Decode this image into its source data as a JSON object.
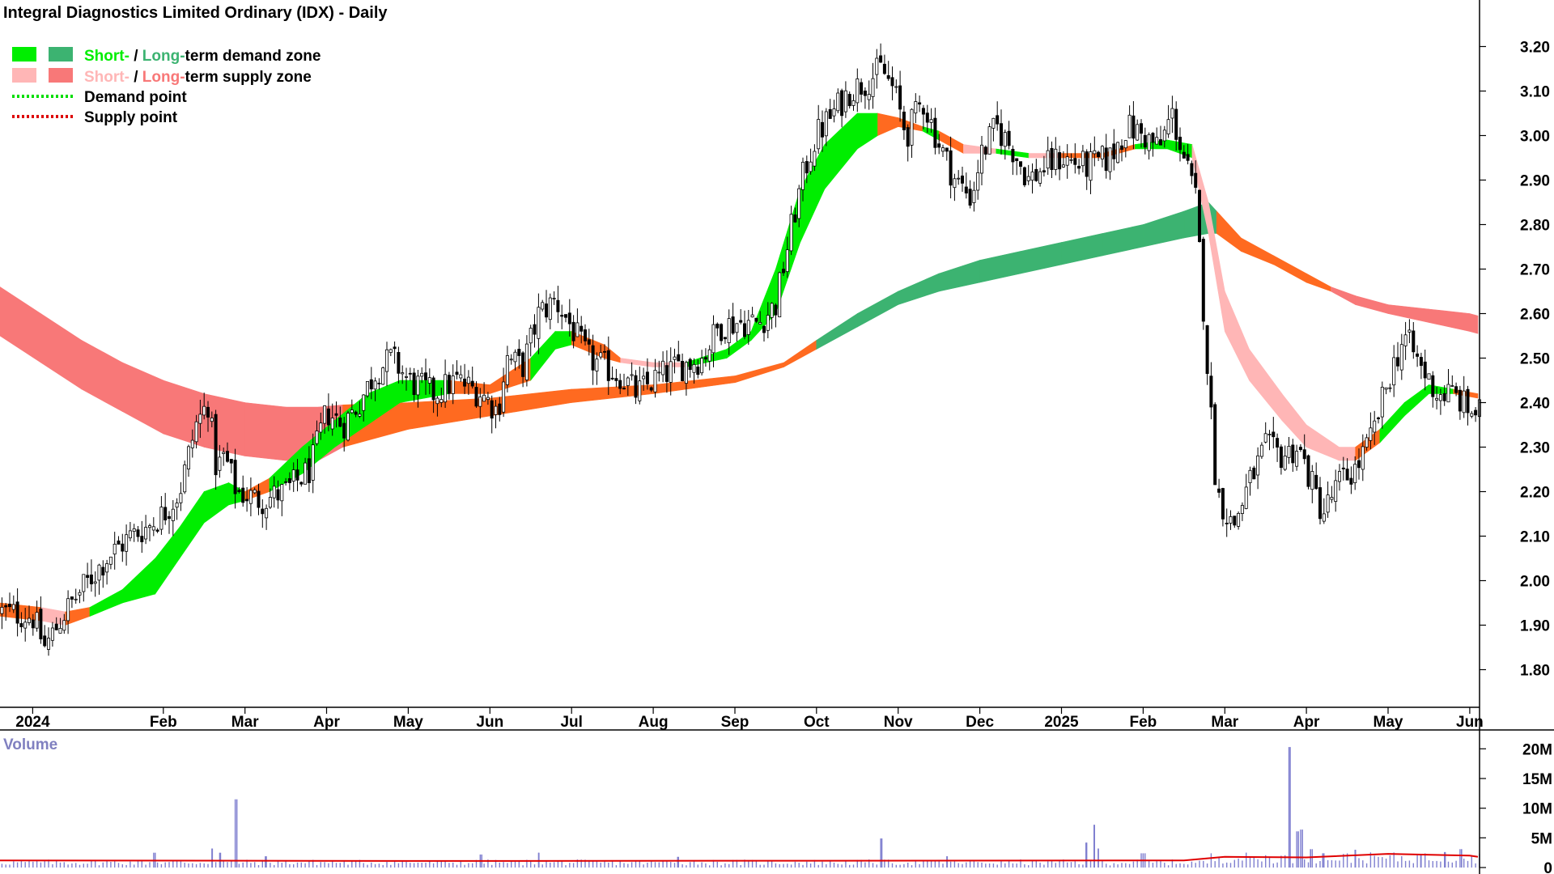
{
  "title": "Integral Diagnostics Limited Ordinary (IDX) - Daily",
  "legend": {
    "demand_zone": {
      "short": "Short-",
      "sep": " / ",
      "long": "Long-",
      "rest": "term demand zone"
    },
    "supply_zone": {
      "short": "Short-",
      "sep": " / ",
      "long": "Long-",
      "rest": "term supply zone"
    },
    "demand_point": "Demand point",
    "supply_point": "Supply point"
  },
  "colors": {
    "short_demand": "#00ee00",
    "long_demand": "#3cb371",
    "short_supply": "#ffb6b6",
    "long_supply": "#f87878",
    "neutral_zone": "#ff6a20",
    "candle": "#000000",
    "volume_bar": "#8080d0",
    "volume_avg": "#e00000",
    "axis_text": "#000000",
    "volume_label": "#8080c0"
  },
  "chart_data": [
    {
      "type": "candlestick",
      "title": "Integral Diagnostics Limited Ordinary (IDX) - Daily",
      "xlabel": "",
      "ylabel": "",
      "ylim": [
        1.75,
        3.25
      ],
      "y_ticks": [
        "1.80",
        "1.90",
        "2.00",
        "2.10",
        "2.20",
        "2.30",
        "2.40",
        "2.50",
        "2.60",
        "2.70",
        "2.80",
        "2.90",
        "3.00",
        "3.10",
        "3.20"
      ],
      "x_ticks": [
        {
          "label": "2024",
          "t": 0.4
        },
        {
          "label": "Feb",
          "t": 2.0
        },
        {
          "label": "Mar",
          "t": 3.0
        },
        {
          "label": "Apr",
          "t": 4.0
        },
        {
          "label": "May",
          "t": 5.0
        },
        {
          "label": "Jun",
          "t": 6.0
        },
        {
          "label": "Jul",
          "t": 7.0
        },
        {
          "label": "Aug",
          "t": 8.0
        },
        {
          "label": "Sep",
          "t": 9.0
        },
        {
          "label": "Oct",
          "t": 10.0
        },
        {
          "label": "Nov",
          "t": 11.0
        },
        {
          "label": "Dec",
          "t": 12.0
        },
        {
          "label": "2025",
          "t": 13.0
        },
        {
          "label": "Feb",
          "t": 14.0
        },
        {
          "label": "Mar",
          "t": 15.0
        },
        {
          "label": "Apr",
          "t": 16.0
        },
        {
          "label": "May",
          "t": 17.0
        },
        {
          "label": "Jun",
          "t": 18.0
        }
      ],
      "t_range": [
        0.0,
        18.1
      ],
      "t_unit": "months since 1 Jan 2024",
      "price_path": [
        [
          0.0,
          1.93
        ],
        [
          0.4,
          1.92
        ],
        [
          0.55,
          1.85
        ],
        [
          0.8,
          1.93
        ],
        [
          1.0,
          1.98
        ],
        [
          1.3,
          2.05
        ],
        [
          1.6,
          2.1
        ],
        [
          1.8,
          2.12
        ],
        [
          2.0,
          2.15
        ],
        [
          2.2,
          2.2
        ],
        [
          2.4,
          2.35
        ],
        [
          2.55,
          2.4
        ],
        [
          2.65,
          2.25
        ],
        [
          2.75,
          2.28
        ],
        [
          2.9,
          2.2
        ],
        [
          3.2,
          2.18
        ],
        [
          3.5,
          2.2
        ],
        [
          3.8,
          2.25
        ],
        [
          4.0,
          2.38
        ],
        [
          4.2,
          2.35
        ],
        [
          4.4,
          2.4
        ],
        [
          4.6,
          2.47
        ],
        [
          4.8,
          2.5
        ],
        [
          5.0,
          2.45
        ],
        [
          5.3,
          2.42
        ],
        [
          5.6,
          2.45
        ],
        [
          5.9,
          2.42
        ],
        [
          6.1,
          2.38
        ],
        [
          6.2,
          2.5
        ],
        [
          6.4,
          2.48
        ],
        [
          6.6,
          2.6
        ],
        [
          6.8,
          2.63
        ],
        [
          7.0,
          2.57
        ],
        [
          7.2,
          2.5
        ],
        [
          7.4,
          2.48
        ],
        [
          7.6,
          2.46
        ],
        [
          7.8,
          2.42
        ],
        [
          8.0,
          2.45
        ],
        [
          8.3,
          2.48
        ],
        [
          8.6,
          2.5
        ],
        [
          8.8,
          2.57
        ],
        [
          9.0,
          2.58
        ],
        [
          9.3,
          2.58
        ],
        [
          9.5,
          2.62
        ],
        [
          9.7,
          2.8
        ],
        [
          9.85,
          2.92
        ],
        [
          10.0,
          3.0
        ],
        [
          10.2,
          3.05
        ],
        [
          10.4,
          3.1
        ],
        [
          10.6,
          3.12
        ],
        [
          10.8,
          3.15
        ],
        [
          10.95,
          3.1
        ],
        [
          11.1,
          3.0
        ],
        [
          11.3,
          3.08
        ],
        [
          11.5,
          2.98
        ],
        [
          11.7,
          2.9
        ],
        [
          11.9,
          2.86
        ],
        [
          12.0,
          2.95
        ],
        [
          12.2,
          3.02
        ],
        [
          12.4,
          2.97
        ],
        [
          12.6,
          2.9
        ],
        [
          12.8,
          2.93
        ],
        [
          13.0,
          2.95
        ],
        [
          13.3,
          2.93
        ],
        [
          13.6,
          2.95
        ],
        [
          13.8,
          3.02
        ],
        [
          14.0,
          3.0
        ],
        [
          14.2,
          2.97
        ],
        [
          14.35,
          3.05
        ],
        [
          14.5,
          2.95
        ],
        [
          14.65,
          2.85
        ],
        [
          14.8,
          2.45
        ],
        [
          14.9,
          2.2
        ],
        [
          15.1,
          2.12
        ],
        [
          15.3,
          2.22
        ],
        [
          15.5,
          2.3
        ],
        [
          15.7,
          2.28
        ],
        [
          15.9,
          2.3
        ],
        [
          16.0,
          2.25
        ],
        [
          16.2,
          2.15
        ],
        [
          16.4,
          2.22
        ],
        [
          16.6,
          2.25
        ],
        [
          16.8,
          2.32
        ],
        [
          17.0,
          2.45
        ],
        [
          17.2,
          2.55
        ],
        [
          17.4,
          2.48
        ],
        [
          17.6,
          2.42
        ],
        [
          17.8,
          2.42
        ],
        [
          18.0,
          2.38
        ]
      ],
      "long_zone": [
        [
          0.0,
          2.66,
          2.55,
          "long_supply"
        ],
        [
          0.5,
          2.6,
          2.49,
          "long_supply"
        ],
        [
          1.0,
          2.54,
          2.43,
          "long_supply"
        ],
        [
          1.5,
          2.49,
          2.38,
          "long_supply"
        ],
        [
          2.0,
          2.45,
          2.33,
          "long_supply"
        ],
        [
          2.5,
          2.42,
          2.3,
          "long_supply"
        ],
        [
          3.0,
          2.4,
          2.28,
          "long_supply"
        ],
        [
          3.5,
          2.39,
          2.27,
          "long_supply"
        ],
        [
          3.9,
          2.39,
          2.27,
          "long_supply"
        ],
        [
          4.2,
          2.395,
          2.3,
          "neutral_zone"
        ],
        [
          5.0,
          2.4,
          2.34,
          "neutral_zone"
        ],
        [
          6.0,
          2.41,
          2.37,
          "neutral_zone"
        ],
        [
          7.0,
          2.43,
          2.4,
          "neutral_zone"
        ],
        [
          8.0,
          2.44,
          2.42,
          "neutral_zone"
        ],
        [
          9.0,
          2.46,
          2.445,
          "neutral_zone"
        ],
        [
          9.6,
          2.49,
          2.48,
          "neutral_zone"
        ],
        [
          10.0,
          2.54,
          2.52,
          "long_demand"
        ],
        [
          10.5,
          2.6,
          2.57,
          "long_demand"
        ],
        [
          11.0,
          2.65,
          2.62,
          "long_demand"
        ],
        [
          11.5,
          2.69,
          2.65,
          "long_demand"
        ],
        [
          12.0,
          2.72,
          2.67,
          "long_demand"
        ],
        [
          12.5,
          2.74,
          2.69,
          "long_demand"
        ],
        [
          13.0,
          2.76,
          2.71,
          "long_demand"
        ],
        [
          13.5,
          2.78,
          2.73,
          "long_demand"
        ],
        [
          14.0,
          2.8,
          2.75,
          "long_demand"
        ],
        [
          14.5,
          2.83,
          2.77,
          "long_demand"
        ],
        [
          14.8,
          2.85,
          2.78,
          "long_demand"
        ],
        [
          14.9,
          2.83,
          2.78,
          "neutral_zone"
        ],
        [
          15.2,
          2.77,
          2.74,
          "neutral_zone"
        ],
        [
          15.6,
          2.73,
          2.71,
          "neutral_zone"
        ],
        [
          16.0,
          2.69,
          2.67,
          "neutral_zone"
        ],
        [
          16.3,
          2.66,
          2.65,
          "long_supply"
        ],
        [
          16.6,
          2.64,
          2.62,
          "long_supply"
        ],
        [
          17.0,
          2.62,
          2.6,
          "long_supply"
        ],
        [
          17.5,
          2.61,
          2.58,
          "long_supply"
        ],
        [
          18.0,
          2.6,
          2.56,
          "long_supply"
        ],
        [
          18.1,
          2.595,
          2.555,
          "long_supply"
        ]
      ],
      "short_zone": [
        [
          0.0,
          1.95,
          1.92,
          "neutral_zone"
        ],
        [
          0.5,
          1.94,
          1.91,
          "short_supply"
        ],
        [
          0.8,
          1.93,
          1.9,
          "neutral_zone"
        ],
        [
          1.1,
          1.94,
          1.92,
          "short_demand"
        ],
        [
          1.5,
          1.98,
          1.95,
          "short_demand"
        ],
        [
          1.9,
          2.05,
          1.97,
          "short_demand"
        ],
        [
          2.2,
          2.12,
          2.05,
          "short_demand"
        ],
        [
          2.5,
          2.2,
          2.13,
          "short_demand"
        ],
        [
          2.8,
          2.22,
          2.17,
          "short_demand"
        ],
        [
          3.0,
          2.2,
          2.18,
          "neutral_zone"
        ],
        [
          3.3,
          2.23,
          2.2,
          "short_demand"
        ],
        [
          3.7,
          2.3,
          2.24,
          "short_demand"
        ],
        [
          4.1,
          2.36,
          2.3,
          "short_demand"
        ],
        [
          4.5,
          2.42,
          2.35,
          "short_demand"
        ],
        [
          4.9,
          2.45,
          2.4,
          "short_demand"
        ],
        [
          5.5,
          2.45,
          2.42,
          "neutral_zone"
        ],
        [
          6.0,
          2.44,
          2.42,
          "neutral_zone"
        ],
        [
          6.5,
          2.5,
          2.45,
          "short_demand"
        ],
        [
          6.8,
          2.56,
          2.52,
          "short_demand"
        ],
        [
          7.0,
          2.56,
          2.53,
          "neutral_zone"
        ],
        [
          7.4,
          2.53,
          2.5,
          "neutral_zone"
        ],
        [
          7.6,
          2.5,
          2.49,
          "short_supply"
        ],
        [
          8.0,
          2.49,
          2.48,
          "short_supply"
        ],
        [
          8.4,
          2.49,
          2.48,
          "short_demand"
        ],
        [
          8.9,
          2.52,
          2.5,
          "short_demand"
        ],
        [
          9.2,
          2.56,
          2.54,
          "short_demand"
        ],
        [
          9.5,
          2.7,
          2.6,
          "short_demand"
        ],
        [
          9.8,
          2.88,
          2.76,
          "short_demand"
        ],
        [
          10.1,
          2.98,
          2.88,
          "short_demand"
        ],
        [
          10.5,
          3.05,
          2.97,
          "short_demand"
        ],
        [
          10.75,
          3.05,
          3.0,
          "neutral_zone"
        ],
        [
          11.0,
          3.04,
          3.02,
          "neutral_zone"
        ],
        [
          11.3,
          3.02,
          3.01,
          "short_demand"
        ],
        [
          11.5,
          3.01,
          2.99,
          "neutral_zone"
        ],
        [
          11.8,
          2.98,
          2.96,
          "short_supply"
        ],
        [
          12.2,
          2.97,
          2.96,
          "short_demand"
        ],
        [
          12.6,
          2.96,
          2.95,
          "short_supply"
        ],
        [
          13.0,
          2.96,
          2.95,
          "neutral_zone"
        ],
        [
          13.5,
          2.96,
          2.95,
          "neutral_zone"
        ],
        [
          13.9,
          2.98,
          2.97,
          "short_demand"
        ],
        [
          14.3,
          2.99,
          2.97,
          "short_demand"
        ],
        [
          14.6,
          2.98,
          2.95,
          "short_supply"
        ],
        [
          14.8,
          2.85,
          2.78,
          "short_supply"
        ],
        [
          15.0,
          2.65,
          2.56,
          "short_supply"
        ],
        [
          15.3,
          2.52,
          2.45,
          "short_supply"
        ],
        [
          15.7,
          2.42,
          2.36,
          "short_supply"
        ],
        [
          16.0,
          2.35,
          2.3,
          "short_supply"
        ],
        [
          16.4,
          2.3,
          2.27,
          "short_supply"
        ],
        [
          16.6,
          2.3,
          2.27,
          "neutral_zone"
        ],
        [
          16.9,
          2.34,
          2.31,
          "short_demand"
        ],
        [
          17.2,
          2.4,
          2.37,
          "short_demand"
        ],
        [
          17.5,
          2.44,
          2.42,
          "short_demand"
        ],
        [
          17.8,
          2.43,
          2.42,
          "neutral_zone"
        ],
        [
          18.1,
          2.42,
          2.41,
          "neutral_zone"
        ]
      ]
    },
    {
      "type": "bar",
      "title": "Volume",
      "ylim": [
        0,
        21000000
      ],
      "y_ticks": [
        {
          "label": "20M",
          "v": 20000000
        },
        {
          "label": "15M",
          "v": 15000000
        },
        {
          "label": "10M",
          "v": 10000000
        },
        {
          "label": "5M",
          "v": 5000000
        },
        {
          "label": "0",
          "v": 0
        }
      ],
      "base_volume_m": 0.9,
      "spikes": [
        [
          1.9,
          2.5
        ],
        [
          2.6,
          3.2
        ],
        [
          2.7,
          2.5
        ],
        [
          2.9,
          11.5
        ],
        [
          3.25,
          1.9
        ],
        [
          5.9,
          2.2
        ],
        [
          6.6,
          2.5
        ],
        [
          8.3,
          1.8
        ],
        [
          10.8,
          4.9
        ],
        [
          11.6,
          1.9
        ],
        [
          13.3,
          4.2
        ],
        [
          13.4,
          7.2
        ],
        [
          13.45,
          3.2
        ],
        [
          14.0,
          2.4
        ],
        [
          15.8,
          20.3
        ],
        [
          15.9,
          6.1
        ],
        [
          15.95,
          6.4
        ],
        [
          16.05,
          3.1
        ],
        [
          16.2,
          2.4
        ],
        [
          16.6,
          3.0
        ],
        [
          17.4,
          2.1
        ],
        [
          17.7,
          2.6
        ],
        [
          17.9,
          3.1
        ]
      ],
      "avg_line_m": [
        [
          0.0,
          1.2
        ],
        [
          5.0,
          1.1
        ],
        [
          10.0,
          1.15
        ],
        [
          14.5,
          1.2
        ],
        [
          15.0,
          1.8
        ],
        [
          16.0,
          1.7
        ],
        [
          17.0,
          2.3
        ],
        [
          18.0,
          2.0
        ],
        [
          18.1,
          1.8
        ]
      ]
    }
  ]
}
